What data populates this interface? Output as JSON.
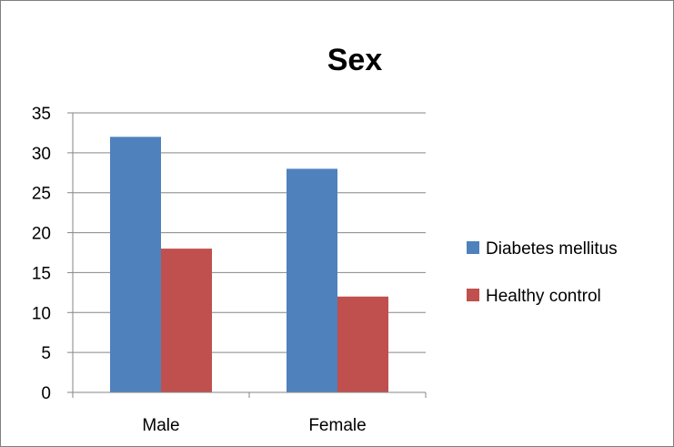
{
  "chart_data": {
    "type": "bar",
    "title": "Sex",
    "xlabel": "",
    "ylabel": "",
    "categories": [
      "Male",
      "Female"
    ],
    "series": [
      {
        "name": "Diabetes mellitus",
        "values": [
          32,
          28
        ],
        "color": "#4f81bd"
      },
      {
        "name": "Healthy control",
        "values": [
          18,
          12
        ],
        "color": "#c0504d"
      }
    ],
    "ylim": [
      0,
      35
    ],
    "yticks": [
      "0",
      "5",
      "10",
      "15",
      "20",
      "25",
      "30",
      "35"
    ],
    "grid": true,
    "legend_position": "right"
  }
}
